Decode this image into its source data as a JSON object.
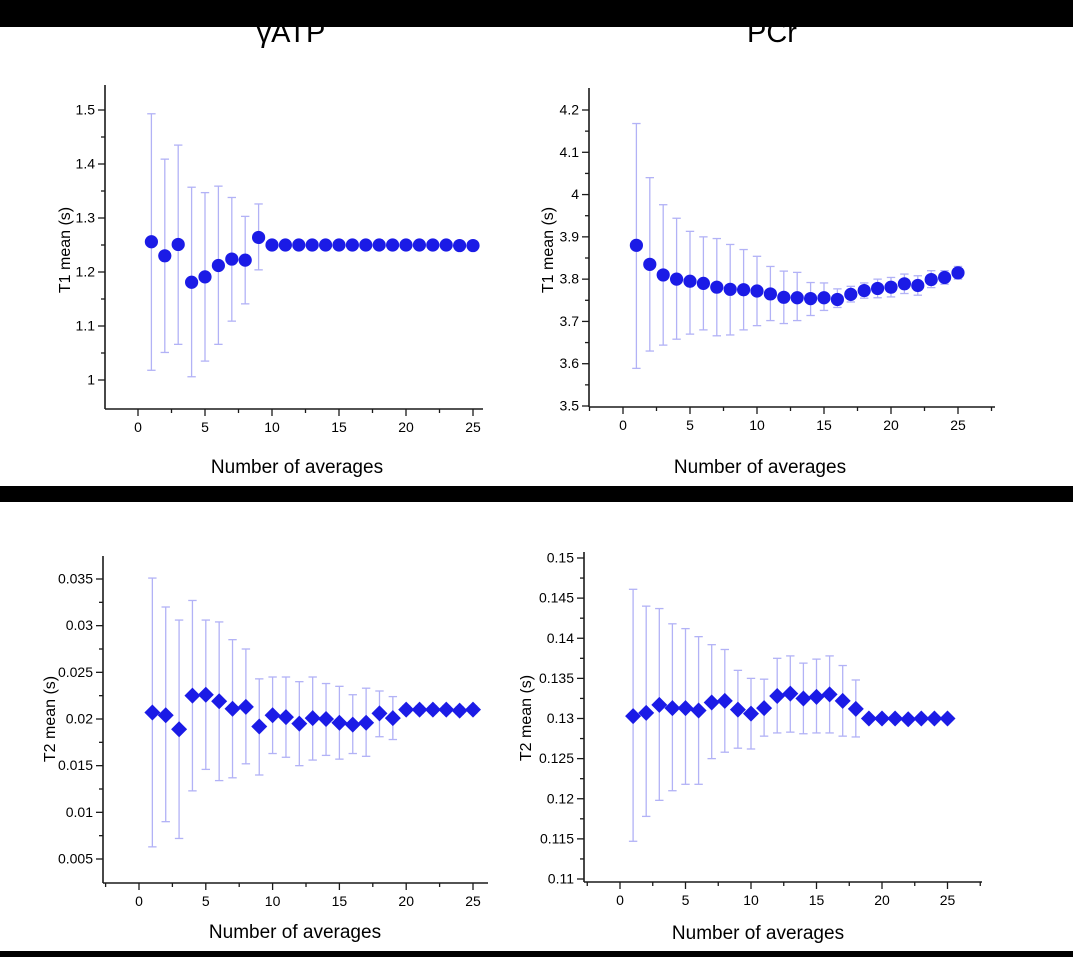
{
  "page": {
    "background": "#ffffff",
    "redaction_color": "#000000"
  },
  "colors": {
    "marker": "#1b1be6",
    "error_bar": "#b2b2f6",
    "axis": "#1a1a1a",
    "text": "#000000"
  },
  "chart_data": [
    {
      "id": "gatp-t1",
      "type": "scatter",
      "title": "γATP",
      "xlabel": "Number of averages",
      "ylabel": "T1 mean (s)",
      "marker": "circle",
      "legend": "none",
      "grid": false,
      "xlim": [
        -2.5,
        26.5
      ],
      "ylim": [
        0.95,
        1.55
      ],
      "xticks": [
        0,
        5,
        10,
        15,
        20,
        25
      ],
      "x_minor_step": 2.5,
      "yticks": [
        1,
        1.1,
        1.2,
        1.3,
        1.4,
        1.5
      ],
      "ytick_labels": [
        "1",
        "1.1",
        "1.2",
        "1.3",
        "1.4",
        "1.5"
      ],
      "x": [
        1,
        2,
        3,
        4,
        5,
        6,
        7,
        8,
        9,
        10,
        11,
        12,
        13,
        14,
        15,
        16,
        17,
        18,
        19,
        20,
        21,
        22,
        23,
        24,
        25
      ],
      "y": [
        1.256,
        1.23,
        1.251,
        1.181,
        1.191,
        1.212,
        1.224,
        1.222,
        1.264,
        1.25,
        1.25,
        1.25,
        1.25,
        1.25,
        1.25,
        1.25,
        1.25,
        1.25,
        1.25,
        1.25,
        1.25,
        1.25,
        1.25,
        1.249,
        1.249
      ],
      "err_lo": [
        1.018,
        1.051,
        1.066,
        1.006,
        1.035,
        1.066,
        1.109,
        1.141,
        1.204,
        1.245,
        1.245,
        1.245,
        1.245,
        1.245,
        1.245,
        1.245,
        1.245,
        1.245,
        1.245,
        1.245,
        1.245,
        1.245,
        1.245,
        1.244,
        1.244
      ],
      "err_hi": [
        1.493,
        1.409,
        1.435,
        1.357,
        1.347,
        1.359,
        1.338,
        1.303,
        1.326,
        1.255,
        1.255,
        1.255,
        1.255,
        1.255,
        1.255,
        1.255,
        1.255,
        1.255,
        1.255,
        1.255,
        1.255,
        1.255,
        1.255,
        1.254,
        1.254
      ]
    },
    {
      "id": "pcr-t1",
      "type": "scatter",
      "title": "PCr",
      "xlabel": "Number of averages",
      "ylabel": "T1 mean (s)",
      "marker": "circle",
      "legend": "none",
      "grid": false,
      "xlim": [
        -2.5,
        27.5
      ],
      "ylim": [
        3.48,
        4.24
      ],
      "xticks": [
        0,
        5,
        10,
        15,
        20,
        25
      ],
      "x_minor_step": 2.5,
      "yticks": [
        3.5,
        3.6,
        3.7,
        3.8,
        3.9,
        4,
        4.1,
        4.2
      ],
      "ytick_labels": [
        "3.5",
        "3.6",
        "3.7",
        "3.8",
        "3.9",
        "4",
        "4.1",
        "4.2"
      ],
      "x": [
        1,
        2,
        3,
        4,
        5,
        6,
        7,
        8,
        9,
        10,
        11,
        12,
        13,
        14,
        15,
        16,
        17,
        18,
        19,
        20,
        21,
        22,
        23,
        24,
        25
      ],
      "y": [
        3.88,
        3.835,
        3.81,
        3.8,
        3.795,
        3.79,
        3.781,
        3.776,
        3.775,
        3.772,
        3.765,
        3.757,
        3.756,
        3.754,
        3.756,
        3.752,
        3.764,
        3.773,
        3.778,
        3.781,
        3.789,
        3.785,
        3.799,
        3.804,
        3.815
      ],
      "err_lo": [
        3.589,
        3.63,
        3.644,
        3.658,
        3.67,
        3.68,
        3.666,
        3.668,
        3.68,
        3.69,
        3.702,
        3.695,
        3.702,
        3.714,
        3.726,
        3.733,
        3.746,
        3.755,
        3.756,
        3.758,
        3.766,
        3.762,
        3.78,
        3.788,
        3.8
      ],
      "err_hi": [
        4.168,
        4.04,
        3.976,
        3.944,
        3.913,
        3.9,
        3.896,
        3.882,
        3.87,
        3.854,
        3.83,
        3.819,
        3.816,
        3.792,
        3.791,
        3.777,
        3.783,
        3.791,
        3.8,
        3.804,
        3.812,
        3.808,
        3.82,
        3.82,
        3.83
      ]
    },
    {
      "id": "gatp-t2",
      "type": "scatter",
      "title": "γATP",
      "xlabel": "Number of averages",
      "ylabel": "T2 mean (s)",
      "marker": "diamond",
      "legend": "none",
      "grid": false,
      "xlim": [
        -2.5,
        26.5
      ],
      "ylim": [
        0.002,
        0.037
      ],
      "xticks": [
        0,
        5,
        10,
        15,
        20,
        25
      ],
      "x_minor_step": 2.5,
      "yticks": [
        0.005,
        0.01,
        0.015,
        0.02,
        0.025,
        0.03,
        0.035
      ],
      "ytick_labels": [
        "0.005",
        "0.01",
        "0.015",
        "0.02",
        "0.025",
        "0.03",
        "0.035"
      ],
      "x": [
        1,
        2,
        3,
        4,
        5,
        6,
        7,
        8,
        9,
        10,
        11,
        12,
        13,
        14,
        15,
        16,
        17,
        18,
        19,
        20,
        21,
        22,
        23,
        24,
        25
      ],
      "y": [
        0.0207,
        0.0204,
        0.0189,
        0.0225,
        0.0226,
        0.0219,
        0.0211,
        0.0213,
        0.0192,
        0.0204,
        0.0202,
        0.0195,
        0.0201,
        0.02,
        0.0196,
        0.0194,
        0.0196,
        0.0206,
        0.0201,
        0.021,
        0.021,
        0.021,
        0.021,
        0.0209,
        0.021
      ],
      "err_lo": [
        0.0063,
        0.009,
        0.0072,
        0.0123,
        0.0146,
        0.0134,
        0.0137,
        0.0152,
        0.014,
        0.0163,
        0.0159,
        0.015,
        0.0156,
        0.0161,
        0.0157,
        0.0163,
        0.016,
        0.0181,
        0.0178,
        0.0206,
        0.0206,
        0.0206,
        0.0206,
        0.0205,
        0.0206
      ],
      "err_hi": [
        0.0351,
        0.032,
        0.0306,
        0.0327,
        0.0306,
        0.0304,
        0.0285,
        0.0275,
        0.0243,
        0.0245,
        0.0245,
        0.024,
        0.0245,
        0.0238,
        0.0235,
        0.0226,
        0.0233,
        0.023,
        0.0224,
        0.0214,
        0.0214,
        0.0214,
        0.0214,
        0.0213,
        0.0214
      ]
    },
    {
      "id": "pcr-t2",
      "type": "scatter",
      "title": "PCr",
      "xlabel": "Number of averages",
      "ylabel": "T2 mean (s)",
      "marker": "diamond",
      "legend": "none",
      "grid": false,
      "xlim": [
        -2.5,
        27.5
      ],
      "ylim": [
        0.1095,
        0.1505
      ],
      "xticks": [
        0,
        5,
        10,
        15,
        20,
        25
      ],
      "x_minor_step": 2.5,
      "yticks": [
        0.11,
        0.115,
        0.12,
        0.125,
        0.13,
        0.135,
        0.14,
        0.145,
        0.15
      ],
      "ytick_labels": [
        "0.11",
        "0.115",
        "0.12",
        "0.125",
        "0.13",
        "0.135",
        "0.14",
        "0.145",
        "0.15"
      ],
      "x": [
        1,
        2,
        3,
        4,
        5,
        6,
        7,
        8,
        9,
        10,
        11,
        12,
        13,
        14,
        15,
        16,
        17,
        18,
        19,
        20,
        21,
        22,
        23,
        24,
        25
      ],
      "y": [
        0.1303,
        0.1307,
        0.1317,
        0.1313,
        0.1313,
        0.131,
        0.132,
        0.1322,
        0.1311,
        0.1306,
        0.1313,
        0.1328,
        0.1331,
        0.1325,
        0.1327,
        0.133,
        0.1322,
        0.1312,
        0.13,
        0.13,
        0.13,
        0.1299,
        0.13,
        0.13,
        0.13
      ],
      "err_lo": [
        0.1147,
        0.1178,
        0.1198,
        0.121,
        0.1218,
        0.1218,
        0.125,
        0.1258,
        0.1263,
        0.1262,
        0.1278,
        0.1282,
        0.1283,
        0.1281,
        0.1282,
        0.1282,
        0.1278,
        0.1277,
        0.1297,
        0.1297,
        0.1297,
        0.1296,
        0.1297,
        0.1297,
        0.1297
      ],
      "err_hi": [
        0.1461,
        0.144,
        0.1437,
        0.1418,
        0.1412,
        0.1402,
        0.1392,
        0.1386,
        0.136,
        0.135,
        0.1349,
        0.1375,
        0.1378,
        0.1369,
        0.1374,
        0.1378,
        0.1366,
        0.1348,
        0.1303,
        0.1303,
        0.1303,
        0.1302,
        0.1303,
        0.1303,
        0.1303
      ]
    }
  ]
}
